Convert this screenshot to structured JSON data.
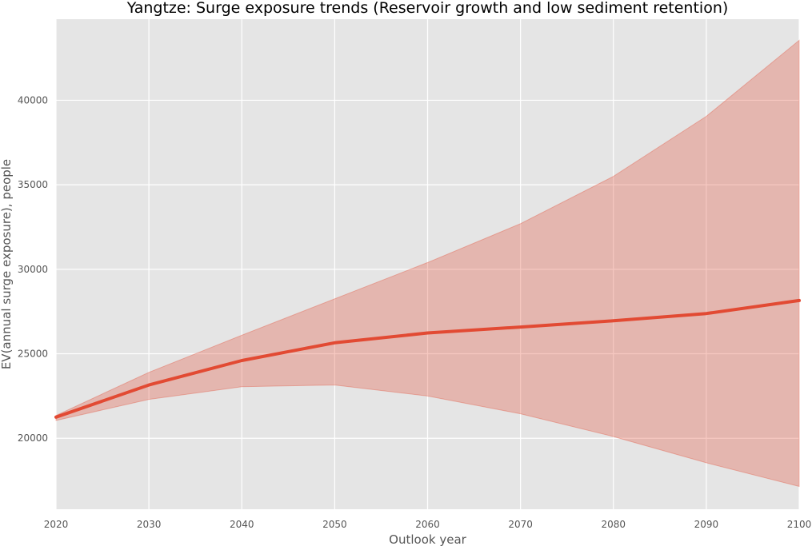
{
  "chart_data": {
    "type": "line",
    "title": "Yangtze: Surge exposure trends (Reservoir growth and low sediment retention)",
    "xlabel": "Outlook year",
    "ylabel": "EV(annual surge exposure), people",
    "x": [
      2020,
      2030,
      2040,
      2050,
      2060,
      2070,
      2080,
      2090,
      2100
    ],
    "series": [
      {
        "values": [
          21250,
          23150,
          24600,
          25650,
          26230,
          26580,
          26950,
          27380,
          28150
        ],
        "band_upper": [
          21350,
          23900,
          26100,
          28250,
          30400,
          32700,
          35500,
          39050,
          43550
        ],
        "band_lower": [
          21050,
          22300,
          23050,
          23150,
          22500,
          21450,
          20100,
          18550,
          17150
        ]
      }
    ],
    "xlim": [
      2020,
      2100
    ],
    "ylim": [
      15800,
      44800
    ],
    "xticks": [
      "2020",
      "2030",
      "2040",
      "2050",
      "2060",
      "2070",
      "2080",
      "2090",
      "2100"
    ],
    "yticks": [
      "20000",
      "25000",
      "30000",
      "35000",
      "40000"
    ],
    "grid": true,
    "colors": {
      "plot_background": "#E5E5E5",
      "grid": "#FFFFFF",
      "line": "#E24A33",
      "band": "#E24A33"
    }
  }
}
